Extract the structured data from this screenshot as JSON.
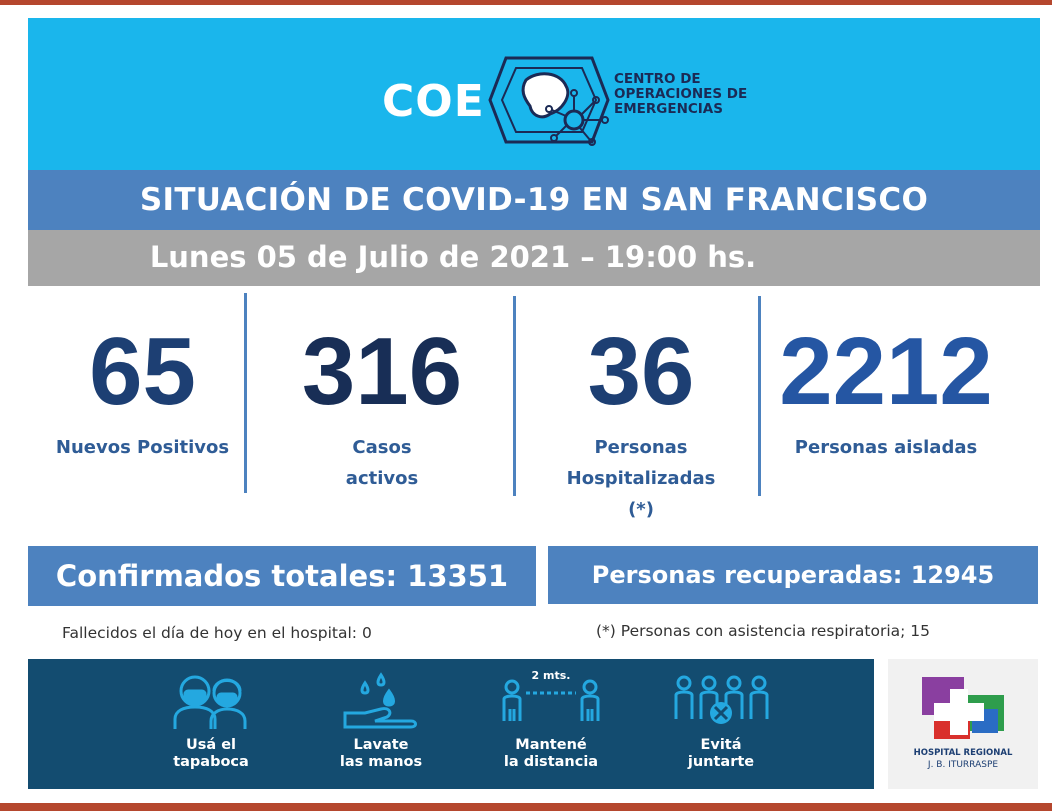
{
  "header": {
    "logo_text": "COE",
    "org_name_lines": [
      "CENTRO DE",
      "OPERACIONES DE",
      "EMERGENCIAS"
    ]
  },
  "title": "SITUACIÓN DE COVID-19 EN SAN FRANCISCO",
  "date_line": "Lunes 05 de Julio de 2021 – 19:00 hs.",
  "stats": [
    {
      "number": "65",
      "label_lines": [
        "Nuevos Positivos"
      ]
    },
    {
      "number": "316",
      "label_lines": [
        "Casos",
        "activos"
      ]
    },
    {
      "number": "36",
      "label_lines": [
        "Personas",
        "Hospitalizadas",
        "(*)"
      ]
    },
    {
      "number": "2212",
      "label_lines": [
        "Personas aisladas"
      ]
    }
  ],
  "totals": {
    "confirmados": "Confirmados totales: 13351",
    "recuperadas": "Personas recuperadas: 12945"
  },
  "notes": {
    "fallecidos": "Fallecidos el día de hoy en el hospital: 0",
    "asistencia": "(*) Personas con asistencia respiratoria; 15"
  },
  "recommendations": [
    {
      "icon": "face-mask-icon",
      "label_lines": [
        "Usá el",
        "tapaboca"
      ]
    },
    {
      "icon": "hand-washing-icon",
      "label_lines": [
        "Lavate",
        "las manos"
      ]
    },
    {
      "icon": "social-distance-icon",
      "distance_text": "2 mts.",
      "label_lines": [
        "Mantené",
        "la distancia"
      ]
    },
    {
      "icon": "no-gathering-icon",
      "label_lines": [
        "Evitá",
        "juntarte"
      ]
    }
  ],
  "hospital": {
    "name": "HOSPITAL REGIONAL",
    "subname": "J. B. ITURRASPE"
  },
  "colors": {
    "header_bg": "#1ab6ec",
    "title_bar": "#4d82bf",
    "date_bar": "#a6a6a6",
    "number_dark": "#1d3f73",
    "label_blue": "#2f5c96",
    "panel_dark": "#134c70",
    "frame_red": "#b5472e"
  }
}
